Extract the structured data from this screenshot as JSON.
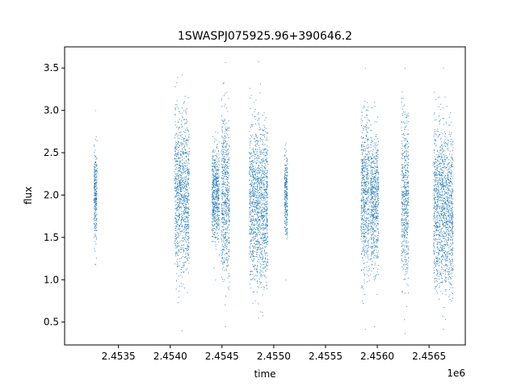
{
  "chart_data": {
    "type": "scatter",
    "title": "1SWASPJ075925.96+390646.2",
    "xlabel": "time",
    "ylabel": "flux",
    "x_offset_label": "1e6",
    "xlim": [
      2.45298,
      2.45685
    ],
    "ylim": [
      0.23,
      3.75
    ],
    "x_ticks": [
      2.4535,
      2.454,
      2.4545,
      2.455,
      2.4555,
      2.456,
      2.4565
    ],
    "x_tick_labels": [
      "2.4535",
      "2.4540",
      "2.4545",
      "2.4550",
      "2.4555",
      "2.4560",
      "2.4565"
    ],
    "y_ticks": [
      0.5,
      1.0,
      1.5,
      2.0,
      2.5,
      3.0,
      3.5
    ],
    "y_tick_labels": [
      "0.5",
      "1.0",
      "1.5",
      "2.0",
      "2.5",
      "3.0",
      "3.5"
    ],
    "grid": false,
    "legend": "none",
    "marker_color": "#1f77b4",
    "clusters": [
      {
        "x_range": [
          2.45326,
          2.45329
        ],
        "y_min": 1.18,
        "y_max": 3.0,
        "y_center": 2.0
      },
      {
        "x_range": [
          2.45404,
          2.45418
        ],
        "y_min": 0.4,
        "y_max": 3.42,
        "y_center": 2.02
      },
      {
        "x_range": [
          2.4544,
          2.45447
        ],
        "y_min": 1.0,
        "y_max": 2.75,
        "y_center": 2.0
      },
      {
        "x_range": [
          2.45449,
          2.45457
        ],
        "y_min": 0.45,
        "y_max": 3.57,
        "y_center": 2.0
      },
      {
        "x_range": [
          2.45476,
          2.45494
        ],
        "y_min": 0.55,
        "y_max": 3.58,
        "y_center": 1.92
      },
      {
        "x_range": [
          2.4551,
          2.45513
        ],
        "y_min": 1.0,
        "y_max": 2.62,
        "y_center": 2.0
      },
      {
        "x_range": [
          2.45584,
          2.45592
        ],
        "y_min": 0.42,
        "y_max": 3.5,
        "y_center": 2.0
      },
      {
        "x_range": [
          2.45593,
          2.45601
        ],
        "y_min": 0.45,
        "y_max": 3.1,
        "y_center": 1.95
      },
      {
        "x_range": [
          2.45623,
          2.4563
        ],
        "y_min": 0.37,
        "y_max": 3.5,
        "y_center": 2.0
      },
      {
        "x_range": [
          2.45654,
          2.45673
        ],
        "y_min": 0.42,
        "y_max": 3.5,
        "y_center": 1.85
      }
    ]
  }
}
